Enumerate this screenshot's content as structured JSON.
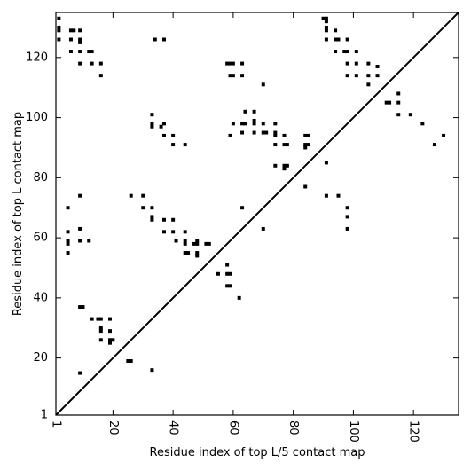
{
  "chart_data": {
    "type": "scatter",
    "title": "",
    "xlabel": "Residue index of top L/5 contact map",
    "ylabel": "Residue index of top L contact map",
    "xlim": [
      1,
      135
    ],
    "ylim": [
      1,
      135
    ],
    "xticks": [
      1,
      20,
      40,
      60,
      80,
      100,
      120
    ],
    "yticks": [
      1,
      20,
      40,
      60,
      80,
      100,
      120
    ],
    "x_tick_labels": [
      "1",
      "20",
      "40",
      "60",
      "80",
      "100",
      "120"
    ],
    "y_tick_labels": [
      "1",
      "20",
      "40",
      "60",
      "80",
      "100",
      "120"
    ],
    "grid": false,
    "diagonal": true,
    "marker_color": "#000000",
    "points": [
      [
        2,
        133
      ],
      [
        2,
        130
      ],
      [
        2,
        129
      ],
      [
        2,
        126
      ],
      [
        6,
        129
      ],
      [
        7,
        129
      ],
      [
        9,
        129
      ],
      [
        6,
        126
      ],
      [
        9,
        126
      ],
      [
        9,
        125
      ],
      [
        6,
        122
      ],
      [
        9,
        122
      ],
      [
        12,
        122
      ],
      [
        13,
        122
      ],
      [
        9,
        118
      ],
      [
        13,
        118
      ],
      [
        16,
        118
      ],
      [
        16,
        114
      ],
      [
        34,
        126
      ],
      [
        37,
        126
      ],
      [
        5,
        70
      ],
      [
        9,
        74
      ],
      [
        5,
        62
      ],
      [
        9,
        63
      ],
      [
        5,
        59
      ],
      [
        5,
        58
      ],
      [
        9,
        59
      ],
      [
        12,
        59
      ],
      [
        5,
        55
      ],
      [
        9,
        37
      ],
      [
        10,
        37
      ],
      [
        9,
        15
      ],
      [
        13,
        33
      ],
      [
        15,
        33
      ],
      [
        16,
        33
      ],
      [
        19,
        33
      ],
      [
        16,
        30
      ],
      [
        16,
        29
      ],
      [
        19,
        29
      ],
      [
        16,
        26
      ],
      [
        19,
        26
      ],
      [
        20,
        26
      ],
      [
        19,
        25
      ],
      [
        25,
        19
      ],
      [
        26,
        19
      ],
      [
        33,
        16
      ],
      [
        26,
        74
      ],
      [
        30,
        74
      ],
      [
        30,
        70
      ],
      [
        33,
        70
      ],
      [
        33,
        67
      ],
      [
        33,
        66
      ],
      [
        37,
        66
      ],
      [
        40,
        66
      ],
      [
        37,
        62
      ],
      [
        40,
        62
      ],
      [
        44,
        62
      ],
      [
        41,
        59
      ],
      [
        44,
        59
      ],
      [
        44,
        58
      ],
      [
        44,
        55
      ],
      [
        45,
        55
      ],
      [
        48,
        55
      ],
      [
        48,
        54
      ],
      [
        47,
        58
      ],
      [
        48,
        58
      ],
      [
        48,
        59
      ],
      [
        51,
        58
      ],
      [
        52,
        58
      ],
      [
        33,
        101
      ],
      [
        33,
        98
      ],
      [
        33,
        97
      ],
      [
        36,
        97
      ],
      [
        37,
        98
      ],
      [
        37,
        94
      ],
      [
        40,
        94
      ],
      [
        40,
        91
      ],
      [
        44,
        91
      ],
      [
        55,
        48
      ],
      [
        58,
        51
      ],
      [
        58,
        48
      ],
      [
        59,
        48
      ],
      [
        58,
        44
      ],
      [
        59,
        44
      ],
      [
        62,
        40
      ],
      [
        63,
        70
      ],
      [
        70,
        63
      ],
      [
        58,
        118
      ],
      [
        59,
        118
      ],
      [
        60,
        118
      ],
      [
        63,
        118
      ],
      [
        59,
        114
      ],
      [
        60,
        114
      ],
      [
        63,
        114
      ],
      [
        70,
        111
      ],
      [
        64,
        102
      ],
      [
        67,
        102
      ],
      [
        60,
        98
      ],
      [
        63,
        98
      ],
      [
        64,
        98
      ],
      [
        67,
        98
      ],
      [
        67,
        99
      ],
      [
        70,
        98
      ],
      [
        74,
        98
      ],
      [
        59,
        94
      ],
      [
        63,
        95
      ],
      [
        67,
        95
      ],
      [
        70,
        95
      ],
      [
        71,
        95
      ],
      [
        74,
        95
      ],
      [
        74,
        94
      ],
      [
        77,
        94
      ],
      [
        74,
        91
      ],
      [
        77,
        91
      ],
      [
        78,
        91
      ],
      [
        77,
        84
      ],
      [
        78,
        84
      ],
      [
        77,
        83
      ],
      [
        74,
        84
      ],
      [
        84,
        94
      ],
      [
        85,
        94
      ],
      [
        84,
        91
      ],
      [
        85,
        91
      ],
      [
        84,
        90
      ],
      [
        84,
        77
      ],
      [
        90,
        133
      ],
      [
        91,
        133
      ],
      [
        91,
        132
      ],
      [
        91,
        130
      ],
      [
        91,
        129
      ],
      [
        94,
        129
      ],
      [
        91,
        126
      ],
      [
        94,
        126
      ],
      [
        95,
        126
      ],
      [
        98,
        126
      ],
      [
        94,
        122
      ],
      [
        97,
        122
      ],
      [
        98,
        122
      ],
      [
        101,
        122
      ],
      [
        98,
        118
      ],
      [
        101,
        118
      ],
      [
        105,
        118
      ],
      [
        108,
        117
      ],
      [
        98,
        114
      ],
      [
        101,
        114
      ],
      [
        105,
        114
      ],
      [
        108,
        114
      ],
      [
        105,
        111
      ],
      [
        111,
        105
      ],
      [
        112,
        105
      ],
      [
        115,
        105
      ],
      [
        115,
        108
      ],
      [
        115,
        101
      ],
      [
        119,
        101
      ],
      [
        123,
        98
      ],
      [
        127,
        91
      ],
      [
        130,
        94
      ],
      [
        91,
        85
      ],
      [
        91,
        74
      ],
      [
        95,
        74
      ],
      [
        98,
        70
      ],
      [
        98,
        67
      ],
      [
        98,
        63
      ]
    ]
  }
}
